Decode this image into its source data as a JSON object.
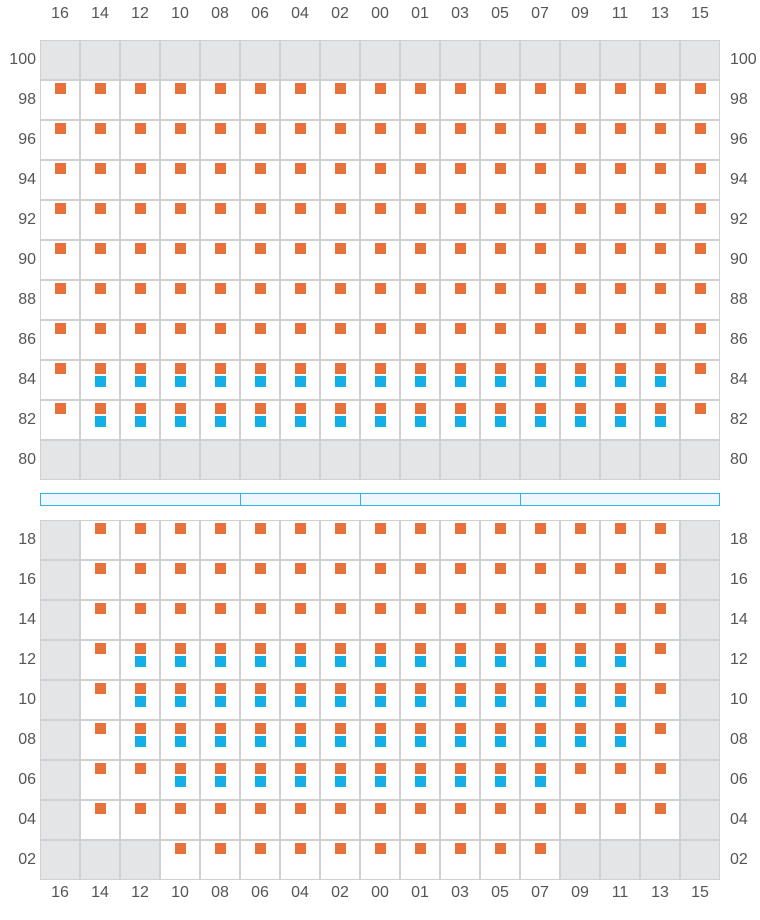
{
  "colors": {
    "primary_marker": "#e8703a",
    "secondary_marker": "#12b0e6",
    "unavailable_cell": "#e4e5e7",
    "available_cell": "#ffffff",
    "grid_line": "#cfd1d4",
    "divider": "#33b3e0",
    "label_text": "#555555"
  },
  "columns": [
    "16",
    "14",
    "12",
    "10",
    "08",
    "06",
    "04",
    "02",
    "00",
    "01",
    "03",
    "05",
    "07",
    "09",
    "11",
    "13",
    "15"
  ],
  "upper_block": {
    "rows": [
      "100",
      "98",
      "96",
      "94",
      "92",
      "90",
      "88",
      "86",
      "84",
      "82",
      "80"
    ],
    "cells": [
      "GGGGGGGGGGGGGGGGG",
      "OOOOOOOOOOOOOOOOO",
      "OOOOOOOOOOOOOOOOO",
      "OOOOOOOOOOOOOOOOO",
      "OOOOOOOOOOOOOOOOO",
      "OOOOOOOOOOOOOOOOO",
      "OOOOOOOOOOOOOOOOO",
      "OOOOOOOOOOOOOOOOO",
      "OBBBBBBBBBBBBBBBO",
      "OBBBBBBBBBBBBBBBO",
      "GGGGGGGGGGGGGGGGG"
    ]
  },
  "lower_block": {
    "rows": [
      "18",
      "16",
      "14",
      "12",
      "10",
      "08",
      "06",
      "04",
      "02"
    ],
    "cells": [
      "GOOOOOOOOOOOOOOOG",
      "GOOOOOOOOOOOOOOOG",
      "GOOOOOOOOOOOOOOOG",
      "GOBBBBBBBBBBBBBOG",
      "GOBBBBBBBBBBBBBOG",
      "GOBBBBBBBBBBBBBOG",
      "GOOBBBBBBBBBBOOOG",
      "GOOOOOOOOOOOOOOOG",
      "GGGOOOOOOOOOOGGGG"
    ]
  },
  "divider_segments": [
    [
      0,
      5
    ],
    [
      5,
      8
    ],
    [
      8,
      12
    ],
    [
      12,
      17
    ]
  ]
}
